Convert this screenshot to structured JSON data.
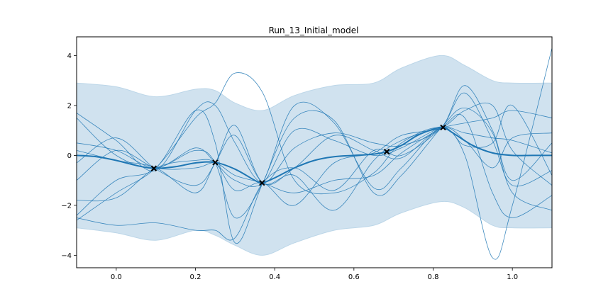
{
  "chart_data": {
    "type": "line",
    "title": "Run_13_Initial_model",
    "xlabel": "",
    "ylabel": "",
    "xlim": [
      -0.1,
      1.1
    ],
    "ylim": [
      -4.5,
      4.75
    ],
    "xticks": [
      0.0,
      0.2,
      0.4,
      0.6,
      0.8,
      1.0
    ],
    "xtick_labels": [
      "0.0",
      "0.2",
      "0.4",
      "0.6",
      "0.8",
      "1.0"
    ],
    "yticks": [
      -4,
      -2,
      0,
      2,
      4
    ],
    "ytick_labels": [
      "−4",
      "−2",
      "0",
      "2",
      "4"
    ],
    "grid": false,
    "colors": {
      "mean": "#1f77b4",
      "band": "#bcd6e8",
      "samples": "#1f77b4",
      "points": "#000000"
    },
    "observations": {
      "x": [
        0.095,
        0.25,
        0.368,
        0.683,
        0.825
      ],
      "y": [
        -0.52,
        -0.28,
        -1.1,
        0.15,
        1.12
      ]
    },
    "mean": {
      "x": [
        -0.1,
        -0.05,
        0.0,
        0.05,
        0.095,
        0.15,
        0.2,
        0.25,
        0.3,
        0.35,
        0.368,
        0.4,
        0.45,
        0.5,
        0.55,
        0.6,
        0.65,
        0.683,
        0.72,
        0.76,
        0.8,
        0.825,
        0.85,
        0.9,
        0.95,
        1.0,
        1.05,
        1.1
      ],
      "y": [
        0.0,
        -0.05,
        -0.2,
        -0.4,
        -0.52,
        -0.45,
        -0.3,
        -0.28,
        -0.55,
        -1.0,
        -1.1,
        -0.9,
        -0.5,
        -0.2,
        -0.05,
        0.0,
        0.05,
        0.15,
        0.4,
        0.8,
        1.05,
        1.12,
        0.9,
        0.4,
        0.1,
        0.0,
        0.0,
        0.0
      ]
    },
    "band_upper": {
      "x": [
        -0.1,
        0.0,
        0.1,
        0.2,
        0.25,
        0.3,
        0.37,
        0.45,
        0.55,
        0.65,
        0.72,
        0.82,
        0.88,
        0.95,
        1.0,
        1.1
      ],
      "y": [
        2.9,
        2.75,
        2.35,
        2.65,
        2.6,
        2.1,
        1.8,
        2.4,
        2.8,
        2.9,
        3.5,
        4.0,
        3.6,
        3.0,
        2.9,
        2.9
      ]
    },
    "band_lower": {
      "x": [
        -0.1,
        0.0,
        0.1,
        0.2,
        0.25,
        0.3,
        0.37,
        0.45,
        0.55,
        0.65,
        0.72,
        0.82,
        0.88,
        0.95,
        1.0,
        1.1
      ],
      "y": [
        -2.9,
        -3.1,
        -3.4,
        -3.0,
        -3.2,
        -3.6,
        -4.0,
        -3.5,
        -3.0,
        -2.8,
        -2.3,
        -1.85,
        -2.1,
        -2.8,
        -2.9,
        -2.9
      ]
    },
    "samples": [
      {
        "x": [
          -0.1,
          0.0,
          0.1,
          0.2,
          0.25,
          0.3,
          0.37,
          0.45,
          0.55,
          0.65,
          0.72,
          0.82,
          0.88,
          0.95,
          1.0,
          1.1
        ],
        "y": [
          1.7,
          0.6,
          -0.6,
          1.8,
          2.0,
          0.5,
          -1.1,
          0.3,
          0.9,
          0.5,
          0.4,
          1.1,
          2.8,
          1.0,
          -1.0,
          0.5
        ]
      },
      {
        "x": [
          -0.1,
          0.0,
          0.1,
          0.2,
          0.25,
          0.3,
          0.37,
          0.45,
          0.55,
          0.65,
          0.72,
          0.82,
          0.88,
          0.95,
          1.0,
          1.1
        ],
        "y": [
          -0.3,
          0.7,
          -0.55,
          -1.2,
          -0.3,
          1.2,
          -1.1,
          -0.5,
          0.8,
          0.2,
          -0.1,
          1.1,
          0.6,
          -0.5,
          0.7,
          0.9
        ]
      },
      {
        "x": [
          -0.1,
          0.0,
          0.1,
          0.2,
          0.25,
          0.3,
          0.37,
          0.45,
          0.55,
          0.65,
          0.72,
          0.82,
          0.88,
          0.95,
          1.0,
          1.1
        ],
        "y": [
          -2.6,
          -1.5,
          -0.5,
          1.5,
          2.1,
          3.3,
          2.5,
          -1.0,
          -1.5,
          -0.7,
          0.5,
          1.1,
          0.0,
          -4.1,
          -2.0,
          4.3
        ]
      },
      {
        "x": [
          -0.1,
          0.0,
          0.1,
          0.2,
          0.25,
          0.3,
          0.37,
          0.45,
          0.55,
          0.65,
          0.72,
          0.82,
          0.88,
          0.95,
          1.0,
          1.1
        ],
        "y": [
          -1.8,
          -1.7,
          -0.5,
          -0.2,
          -0.3,
          -1.4,
          -1.1,
          -2.0,
          -0.3,
          0.1,
          0.8,
          1.1,
          1.8,
          2.0,
          0.2,
          -1.2
        ]
      },
      {
        "x": [
          -0.1,
          0.0,
          0.1,
          0.2,
          0.25,
          0.3,
          0.37,
          0.45,
          0.55,
          0.65,
          0.72,
          0.82,
          0.88,
          0.95,
          1.0,
          1.1
        ],
        "y": [
          0.5,
          0.2,
          -0.5,
          0.3,
          -0.3,
          -1.0,
          -1.1,
          1.0,
          0.6,
          0.0,
          0.3,
          1.1,
          0.9,
          0.7,
          0.6,
          0.1
        ]
      },
      {
        "x": [
          -0.1,
          0.0,
          0.1,
          0.2,
          0.25,
          0.3,
          0.37,
          0.45,
          0.55,
          0.65,
          0.72,
          0.82,
          0.88,
          0.95,
          1.0,
          1.1
        ],
        "y": [
          -2.5,
          -2.8,
          -2.7,
          -3.0,
          -3.0,
          -3.3,
          -1.1,
          -0.5,
          -1.4,
          0.2,
          0.0,
          1.1,
          2.5,
          0.6,
          -1.2,
          -0.6
        ]
      },
      {
        "x": [
          -0.1,
          0.0,
          0.1,
          0.2,
          0.25,
          0.3,
          0.37,
          0.45,
          0.55,
          0.65,
          0.72,
          0.82,
          0.88,
          0.95,
          1.0,
          1.1
        ],
        "y": [
          1.5,
          0.0,
          -0.5,
          0.2,
          -0.3,
          -2.5,
          -1.1,
          2.0,
          1.3,
          -1.3,
          -0.5,
          1.1,
          0.4,
          0.5,
          2.0,
          -0.8
        ]
      },
      {
        "x": [
          -0.1,
          0.0,
          0.1,
          0.2,
          0.25,
          0.3,
          0.37,
          0.45,
          0.55,
          0.65,
          0.72,
          0.82,
          0.88,
          0.95,
          1.0,
          1.1
        ],
        "y": [
          -1.0,
          0.2,
          -0.5,
          -0.5,
          -0.3,
          -0.8,
          -1.1,
          -1.5,
          -1.0,
          -0.8,
          0.1,
          1.1,
          1.5,
          -1.5,
          -2.5,
          -1.6
        ]
      },
      {
        "x": [
          -0.1,
          0.0,
          0.1,
          0.2,
          0.25,
          0.3,
          0.37,
          0.45,
          0.55,
          0.65,
          0.72,
          0.82,
          0.88,
          0.95,
          1.0,
          1.1
        ],
        "y": [
          -2.4,
          -1.0,
          -0.5,
          1.8,
          0.5,
          -3.5,
          -1.1,
          1.5,
          1.4,
          -1.5,
          -0.8,
          1.1,
          1.9,
          0.9,
          -1.5,
          -2.2
        ]
      },
      {
        "x": [
          -0.1,
          0.0,
          0.1,
          0.2,
          0.25,
          0.3,
          0.37,
          0.45,
          0.55,
          0.65,
          0.72,
          0.82,
          0.88,
          0.95,
          1.0,
          1.1
        ],
        "y": [
          0.2,
          -0.2,
          -0.5,
          -1.5,
          -0.3,
          0.8,
          -1.1,
          -0.8,
          -2.2,
          -0.2,
          0.6,
          1.1,
          1.3,
          1.5,
          1.8,
          1.5
        ]
      }
    ]
  }
}
